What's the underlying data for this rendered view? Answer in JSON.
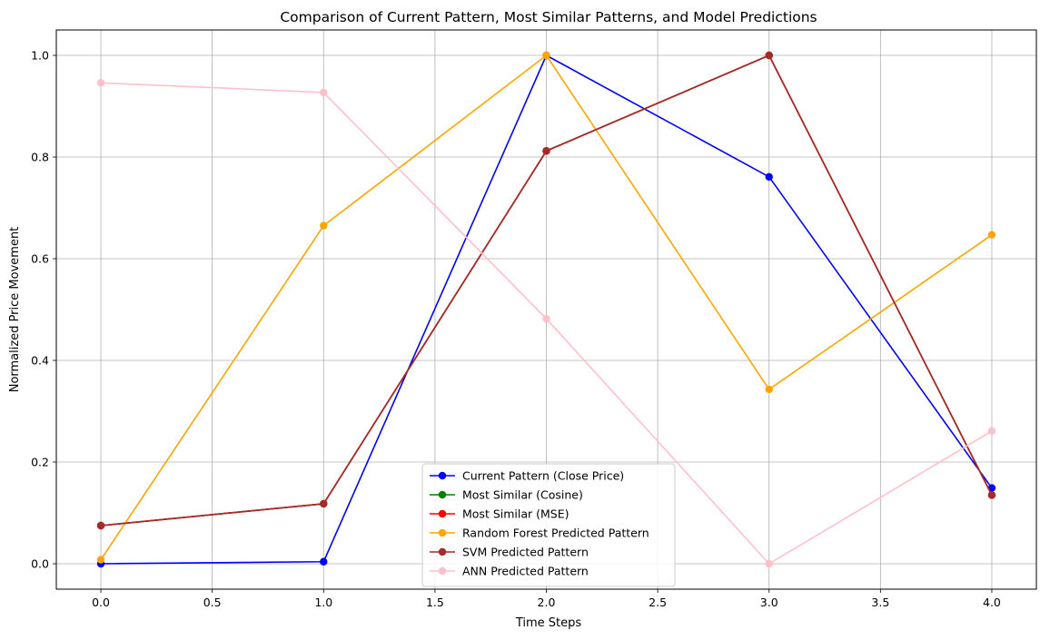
{
  "chart_data": {
    "type": "line",
    "title": "Comparison of Current Pattern, Most Similar Patterns, and Model Predictions",
    "xlabel": "Time Steps",
    "ylabel": "Normalized Price Movement",
    "x": [
      0,
      1,
      2,
      3,
      4
    ],
    "xlim": [
      -0.2,
      4.2
    ],
    "ylim": [
      -0.05,
      1.05
    ],
    "xticks": [
      "0.0",
      "0.5",
      "1.0",
      "1.5",
      "2.0",
      "2.5",
      "3.0",
      "3.5",
      "4.0"
    ],
    "xtick_values": [
      0,
      0.5,
      1,
      1.5,
      2,
      2.5,
      3,
      3.5,
      4
    ],
    "yticks": [
      "0.0",
      "0.2",
      "0.4",
      "0.6",
      "0.8",
      "1.0"
    ],
    "ytick_values": [
      0,
      0.2,
      0.4,
      0.6,
      0.8,
      1.0
    ],
    "grid": true,
    "legend_position": "bottom-center",
    "series": [
      {
        "name": "Current Pattern (Close Price)",
        "color": "#0000ff",
        "values": [
          0.0,
          0.004,
          1.0,
          0.761,
          0.149
        ]
      },
      {
        "name": "Most Similar (Cosine)",
        "color": "#008000",
        "values": [
          0.075,
          0.118,
          0.812,
          1.0,
          0.135
        ]
      },
      {
        "name": "Most Similar (MSE)",
        "color": "#ff0000",
        "values": [
          0.075,
          0.118,
          0.812,
          1.0,
          0.135
        ]
      },
      {
        "name": "Random Forest Predicted Pattern",
        "color": "#ffa500",
        "values": [
          0.008,
          0.665,
          1.0,
          0.343,
          0.647
        ]
      },
      {
        "name": "SVM Predicted Pattern",
        "color": "#a52a2a",
        "values": [
          0.075,
          0.118,
          0.812,
          1.0,
          0.135
        ]
      },
      {
        "name": "ANN Predicted Pattern",
        "color": "#ffc0cb",
        "values": [
          0.946,
          0.927,
          0.482,
          0.0,
          0.261
        ]
      }
    ]
  }
}
